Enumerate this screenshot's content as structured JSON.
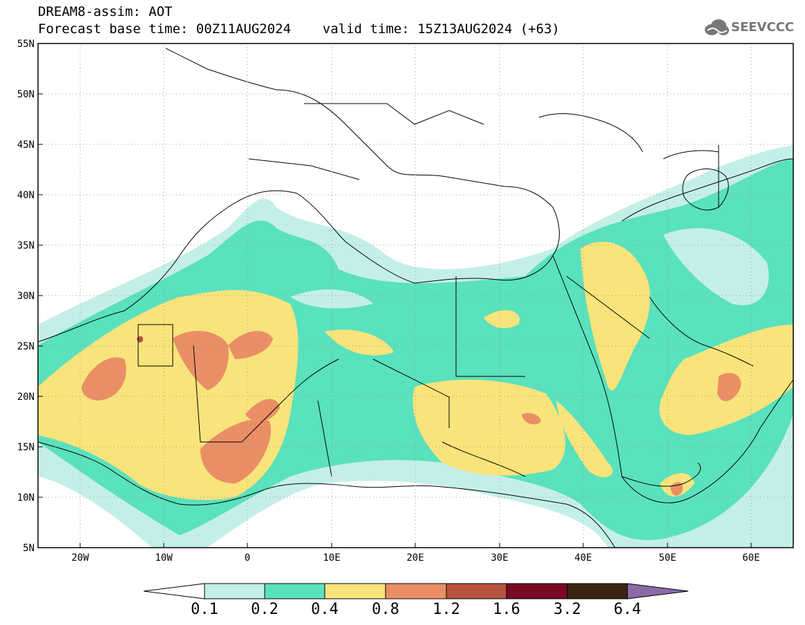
{
  "title": {
    "line1": "DREAM8-assim: AOT",
    "line2": "Forecast base time: 00Z11AUG2024    valid time: 15Z13AUG2024 (+63)"
  },
  "logo": {
    "text": "SEEVCCC",
    "icon": "cloud-icon"
  },
  "map": {
    "lat_range": [
      5,
      55
    ],
    "lon_range": [
      -25,
      65
    ],
    "lat_labels": [
      "55N",
      "50N",
      "45N",
      "40N",
      "35N",
      "30N",
      "25N",
      "20N",
      "15N",
      "10N",
      "5N"
    ],
    "lon_labels": [
      "20W",
      "10W",
      "0",
      "10E",
      "20E",
      "30E",
      "40E",
      "50E",
      "60E"
    ],
    "grid": "dotted"
  },
  "colorbar": {
    "colors": [
      "#ffffff",
      "#c4efe8",
      "#5ae1bd",
      "#f8e47a",
      "#ea8e66",
      "#b5523e",
      "#7a0a23",
      "#3b2414",
      "#8b6aa8"
    ],
    "labels": [
      "0.1",
      "0.2",
      "0.4",
      "0.8",
      "1.2",
      "1.6",
      "3.2",
      "6.4"
    ]
  }
}
